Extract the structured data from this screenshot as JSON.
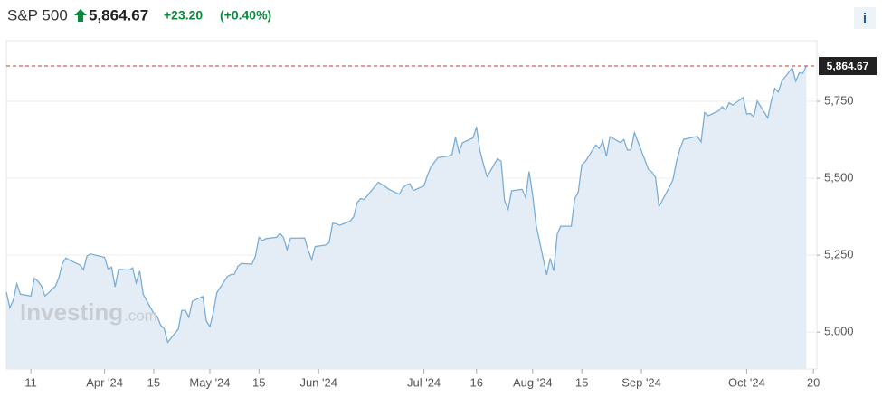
{
  "chart_data": {
    "type": "area",
    "title": "S&P 500",
    "price": "5,864.67",
    "change": "+23.20",
    "change_pct": "(+0.40%)",
    "info_button": "i",
    "watermark": {
      "brand": "Investing",
      "suffix": ".com"
    },
    "color": "#7aaed6",
    "fill": "#e4edf6",
    "grid": true,
    "price_line": {
      "value": 5864.67,
      "label": "5,864.67"
    },
    "xlim": [
      64,
      295
    ],
    "xticks": [
      {
        "value": 71,
        "label": "11"
      },
      {
        "value": 92,
        "label": "Apr '24"
      },
      {
        "value": 106,
        "label": "15"
      },
      {
        "value": 122,
        "label": "May '24"
      },
      {
        "value": 136,
        "label": "15"
      },
      {
        "value": 153,
        "label": "Jun '24"
      },
      {
        "value": 183,
        "label": "Jul '24"
      },
      {
        "value": 198,
        "label": "16"
      },
      {
        "value": 214,
        "label": "Aug '24"
      },
      {
        "value": 228,
        "label": "15"
      },
      {
        "value": 245,
        "label": "Sep '24"
      },
      {
        "value": 275,
        "label": "Oct '24"
      },
      {
        "value": 294,
        "label": "20"
      }
    ],
    "ylim": [
      4880,
      5947
    ],
    "yticks": [
      {
        "value": 5000,
        "label": "5,000"
      },
      {
        "value": 5250,
        "label": "5,250"
      },
      {
        "value": 5500,
        "label": "5,500"
      },
      {
        "value": 5750,
        "label": "5,750"
      }
    ],
    "x": [
      64,
      65,
      66,
      67,
      68,
      71,
      72,
      73,
      74,
      75,
      78,
      79,
      80,
      81,
      82,
      85,
      86,
      87,
      88,
      92,
      93,
      94,
      95,
      96,
      99,
      100,
      101,
      102,
      103,
      106,
      107,
      108,
      109,
      110,
      113,
      114,
      115,
      116,
      117,
      120,
      121,
      122,
      123,
      124,
      127,
      128,
      129,
      130,
      131,
      134,
      135,
      136,
      137,
      138,
      141,
      142,
      143,
      144,
      145,
      149,
      150,
      151,
      152,
      155,
      156,
      157,
      158,
      159,
      162,
      163,
      164,
      165,
      166,
      169,
      170,
      172,
      173,
      176,
      177,
      178,
      179,
      180,
      183,
      184,
      185,
      187,
      190,
      191,
      192,
      193,
      194,
      197,
      198,
      199,
      200,
      201,
      204,
      205,
      206,
      207,
      208,
      211,
      212,
      213,
      214,
      215,
      218,
      219,
      220,
      221,
      222,
      225,
      226,
      227,
      228,
      229,
      232,
      233,
      234,
      235,
      236,
      239,
      240,
      241,
      242,
      243,
      247,
      248,
      249,
      250,
      253,
      254,
      255,
      256,
      257,
      260,
      261,
      262,
      263,
      264,
      267,
      268,
      269,
      270,
      271,
      274,
      275,
      276,
      277,
      278,
      281,
      282,
      283,
      284,
      285,
      288,
      289,
      290,
      291,
      292
    ],
    "values": [
      5130,
      5079,
      5105,
      5157,
      5123,
      5117,
      5175,
      5165,
      5150,
      5117,
      5149,
      5178,
      5224,
      5241,
      5234,
      5218,
      5203,
      5248,
      5254,
      5243,
      5205,
      5211,
      5147,
      5204,
      5202,
      5209,
      5160,
      5199,
      5123,
      5061,
      5051,
      5022,
      5011,
      4967,
      5010,
      5070,
      5071,
      5048,
      5100,
      5116,
      5036,
      5018,
      5064,
      5128,
      5181,
      5187,
      5188,
      5214,
      5223,
      5221,
      5247,
      5308,
      5297,
      5304,
      5308,
      5321,
      5307,
      5268,
      5305,
      5306,
      5267,
      5235,
      5278,
      5283,
      5291,
      5354,
      5352,
      5347,
      5361,
      5375,
      5421,
      5434,
      5431,
      5473,
      5487,
      5473,
      5464,
      5448,
      5469,
      5478,
      5482,
      5460,
      5475,
      5509,
      5537,
      5567,
      5572,
      5577,
      5633,
      5585,
      5615,
      5631,
      5667,
      5588,
      5545,
      5505,
      5564,
      5555,
      5427,
      5399,
      5459,
      5464,
      5436,
      5522,
      5446,
      5347,
      5186,
      5240,
      5199,
      5319,
      5344,
      5344,
      5434,
      5455,
      5543,
      5554,
      5608,
      5597,
      5621,
      5571,
      5635,
      5616,
      5626,
      5592,
      5592,
      5648,
      5529,
      5520,
      5503,
      5408,
      5472,
      5496,
      5554,
      5596,
      5626,
      5634,
      5635,
      5618,
      5714,
      5703,
      5719,
      5732,
      5722,
      5745,
      5738,
      5762,
      5709,
      5710,
      5700,
      5751,
      5696,
      5751,
      5792,
      5780,
      5815,
      5859,
      5815,
      5843,
      5841,
      5864.67
    ]
  }
}
